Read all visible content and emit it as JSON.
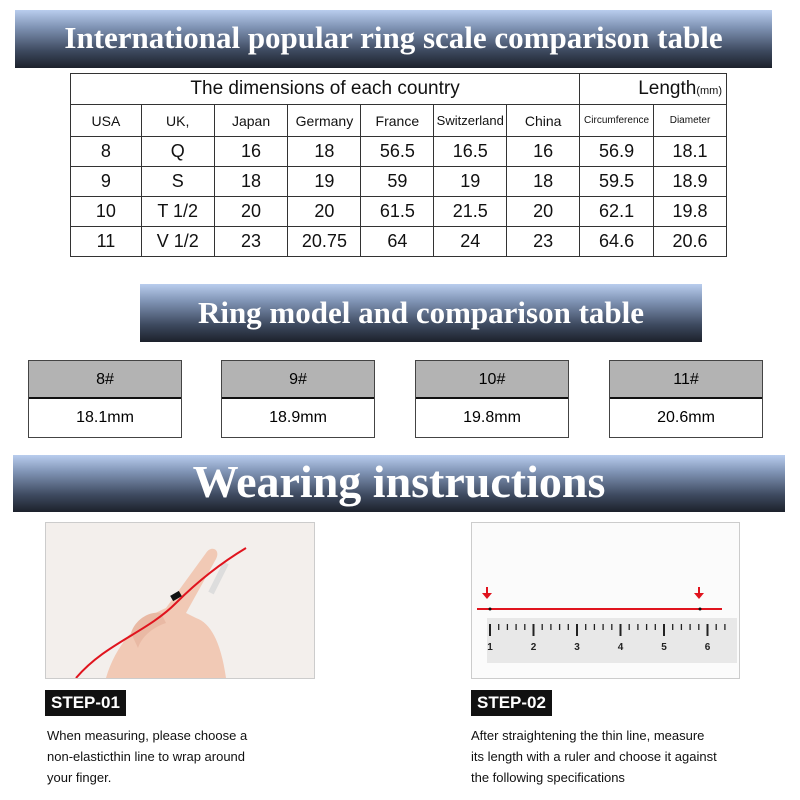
{
  "banners": {
    "main": "International popular ring scale comparison table",
    "model": "Ring model and comparison table",
    "wearing": "Wearing instructions"
  },
  "table": {
    "group_header": "The dimensions of each country",
    "length_header": "Length",
    "length_unit": "(mm)",
    "columns": [
      "USA",
      "UK,",
      "Japan",
      "Germany",
      "France",
      "Switzerland",
      "China",
      "Circumference",
      "Diameter"
    ],
    "rows": [
      [
        "8",
        "Q",
        "16",
        "18",
        "56.5",
        "16.5",
        "16",
        "56.9",
        "18.1"
      ],
      [
        "9",
        "S",
        "18",
        "19",
        "59",
        "19",
        "18",
        "59.5",
        "18.9"
      ],
      [
        "10",
        "T 1/2",
        "20",
        "20",
        "61.5",
        "21.5",
        "20",
        "62.1",
        "19.8"
      ],
      [
        "11",
        "V 1/2",
        "23",
        "20.75",
        "64",
        "24",
        "23",
        "64.6",
        "20.6"
      ]
    ]
  },
  "models": [
    {
      "size": "8#",
      "diameter": "18.1mm"
    },
    {
      "size": "9#",
      "diameter": "18.9mm"
    },
    {
      "size": "10#",
      "diameter": "19.8mm"
    },
    {
      "size": "11#",
      "diameter": "20.6mm"
    }
  ],
  "steps": [
    {
      "label": "STEP-01",
      "lines": [
        "When measuring, please choose a",
        "non-elasticthin line to wrap around",
        "your finger."
      ]
    },
    {
      "label": "STEP-02",
      "lines": [
        "After straightening the thin line, measure",
        "its length with a ruler and choose it against",
        "the following specifications"
      ]
    }
  ],
  "ruler": {
    "labels": [
      "1",
      "2",
      "3",
      "4",
      "5",
      "6"
    ]
  },
  "colors": {
    "accent_red": "#e0141e",
    "banner_dark": "#1c212b",
    "banner_light": "#b9cdee"
  }
}
